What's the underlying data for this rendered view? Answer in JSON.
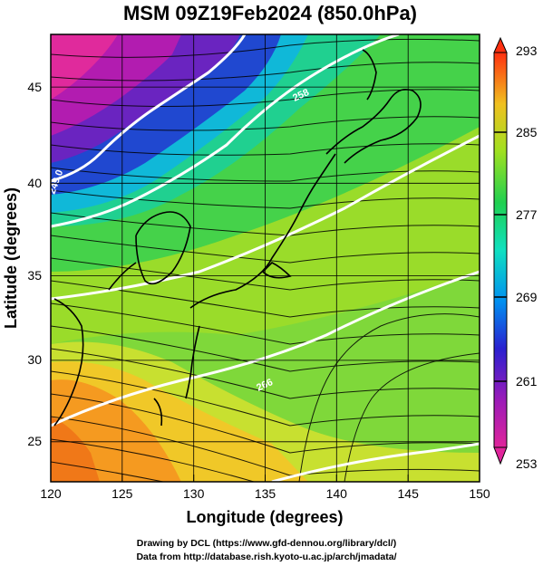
{
  "title": "MSM 09Z19Feb2024 (850.0hPa)",
  "xlabel": "Longitude (degrees)",
  "ylabel": "Latitude  (degrees)",
  "x_ticks": [
    "120",
    "125",
    "130",
    "135",
    "140",
    "145",
    "150"
  ],
  "y_ticks": [
    "25",
    "30",
    "35",
    "40",
    "45"
  ],
  "colorbar": {
    "labels": [
      "293",
      "285",
      "277",
      "269",
      "261",
      "253"
    ],
    "min": 253,
    "max": 293,
    "colors": [
      "#e0259b",
      "#9b1bb8",
      "#2a20d0",
      "#00aaf0",
      "#10e0b0",
      "#20d050",
      "#a0e020",
      "#f0d020",
      "#ff8000",
      "#ff3010"
    ]
  },
  "contour_labels": [
    "249.0",
    "258",
    "266"
  ],
  "credits": [
    "Drawing by DCL (https://www.gfd-dennou.org/library/dcl/)",
    "Data from http://database.rish.kyoto-u.ac.jp/arch/jmadata/"
  ],
  "chart_data": {
    "type": "heatmap",
    "variable": "temperature at 850.0hPa (K) with wind streamlines",
    "xlim": [
      120,
      150
    ],
    "ylim": [
      22.5,
      48
    ],
    "color_range": [
      253,
      293
    ]
  }
}
